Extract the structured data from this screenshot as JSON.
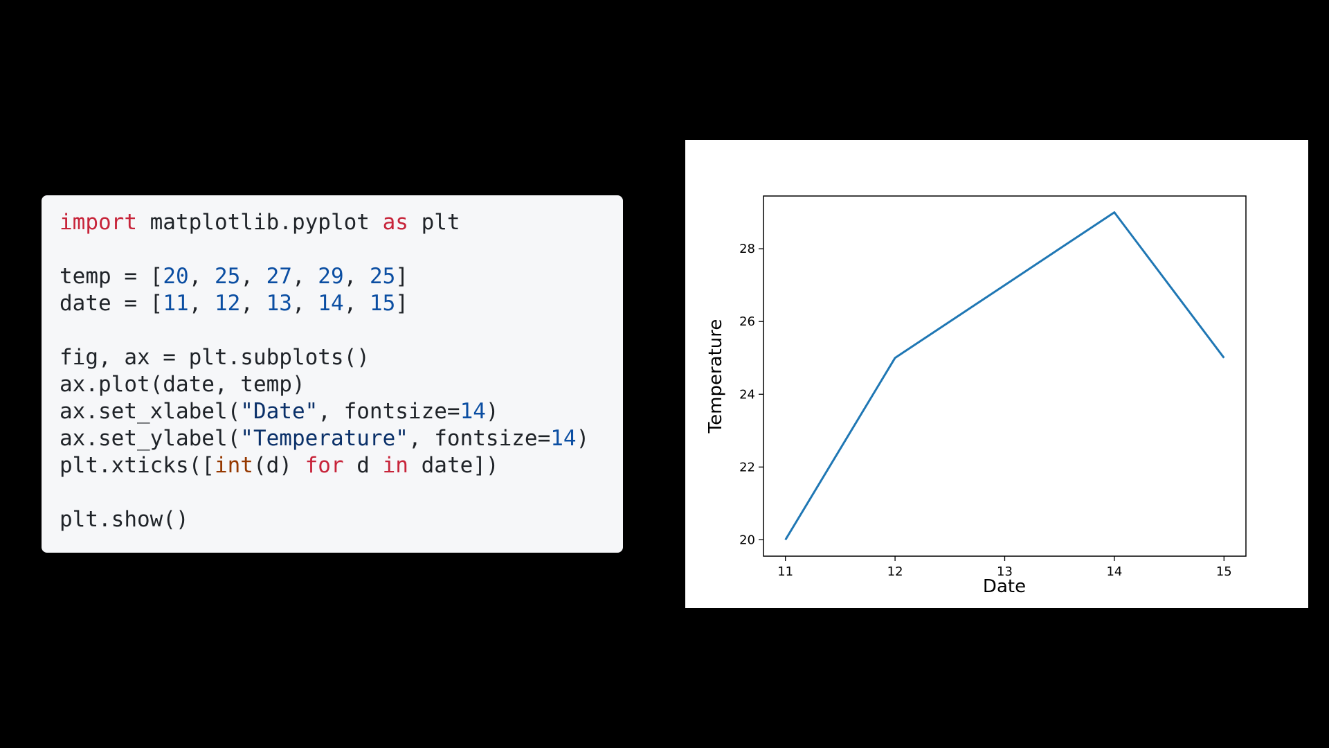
{
  "code": {
    "lines": [
      [
        {
          "t": "import",
          "k": "kw"
        },
        {
          "t": " matplotlib.pyplot "
        },
        {
          "t": "as",
          "k": "kw"
        },
        {
          "t": " plt"
        }
      ],
      [],
      [
        {
          "t": "temp = ["
        },
        {
          "t": "20",
          "k": "num"
        },
        {
          "t": ", "
        },
        {
          "t": "25",
          "k": "num"
        },
        {
          "t": ", "
        },
        {
          "t": "27",
          "k": "num"
        },
        {
          "t": ", "
        },
        {
          "t": "29",
          "k": "num"
        },
        {
          "t": ", "
        },
        {
          "t": "25",
          "k": "num"
        },
        {
          "t": "]"
        }
      ],
      [
        {
          "t": "date = ["
        },
        {
          "t": "11",
          "k": "num"
        },
        {
          "t": ", "
        },
        {
          "t": "12",
          "k": "num"
        },
        {
          "t": ", "
        },
        {
          "t": "13",
          "k": "num"
        },
        {
          "t": ", "
        },
        {
          "t": "14",
          "k": "num"
        },
        {
          "t": ", "
        },
        {
          "t": "15",
          "k": "num"
        },
        {
          "t": "]"
        }
      ],
      [],
      [
        {
          "t": "fig, ax = plt.subplots()"
        }
      ],
      [
        {
          "t": "ax.plot(date, temp)"
        }
      ],
      [
        {
          "t": "ax.set_xlabel("
        },
        {
          "t": "\"Date\"",
          "k": "str"
        },
        {
          "t": ", fontsize="
        },
        {
          "t": "14",
          "k": "num"
        },
        {
          "t": ")"
        }
      ],
      [
        {
          "t": "ax.set_ylabel("
        },
        {
          "t": "\"Temperature\"",
          "k": "str"
        },
        {
          "t": ", fontsize="
        },
        {
          "t": "14",
          "k": "num"
        },
        {
          "t": ")"
        }
      ],
      [
        {
          "t": "plt.xticks(["
        },
        {
          "t": "int",
          "k": "fn"
        },
        {
          "t": "(d) "
        },
        {
          "t": "for",
          "k": "kw"
        },
        {
          "t": " d "
        },
        {
          "t": "in",
          "k": "kw"
        },
        {
          "t": " date])"
        }
      ],
      [],
      [
        {
          "t": "plt.show()"
        }
      ]
    ]
  },
  "chart_data": {
    "type": "line",
    "x": [
      11,
      12,
      13,
      14,
      15
    ],
    "series": [
      {
        "values": [
          20,
          25,
          27,
          29,
          25
        ],
        "color": "#1f77b4"
      }
    ],
    "xlabel": "Date",
    "ylabel": "Temperature",
    "xticks": [
      "11",
      "12",
      "13",
      "14",
      "15"
    ],
    "yticks": [
      "20",
      "22",
      "24",
      "26",
      "28"
    ],
    "xlim": [
      10.8,
      15.2
    ],
    "ylim": [
      19.55,
      29.45
    ],
    "grid": false
  }
}
